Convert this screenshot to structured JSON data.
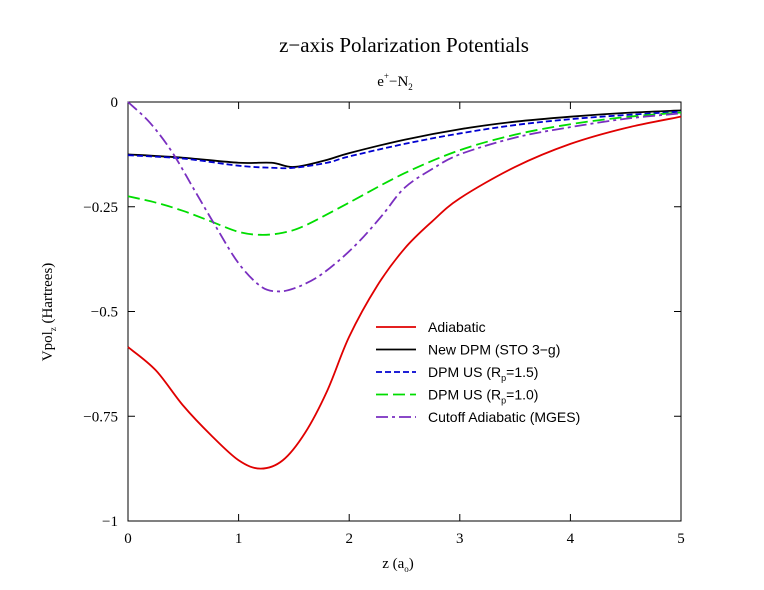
{
  "chart_data": {
    "type": "line",
    "title": "z−axis Polarization Potentials",
    "subtitle": {
      "base": "e",
      "sup": "+",
      "dash": "−",
      "base2": "N",
      "sub": "2"
    },
    "xlabel": {
      "base": "z (a",
      "sub": "o",
      "end": ")"
    },
    "ylabel": {
      "base": "Vpol",
      "sub": "z",
      "end": " (Hartrees)"
    },
    "xlim": [
      0,
      5
    ],
    "ylim": [
      -1,
      0
    ],
    "xticks": [
      0,
      1,
      2,
      3,
      4,
      5
    ],
    "xtick_labels": [
      "0",
      "1",
      "2",
      "3",
      "4",
      "5"
    ],
    "yticks": [
      0,
      -0.25,
      -0.5,
      -0.75,
      -1
    ],
    "ytick_labels": [
      "0",
      "−0.25",
      "−0.5",
      "−0.75",
      "−1"
    ],
    "grid": false,
    "legend_position": "right-middle",
    "series": [
      {
        "name": "Adiabatic",
        "color": "#e00000",
        "dash": "solid",
        "x": [
          0,
          0.25,
          0.5,
          0.75,
          1.0,
          1.2,
          1.4,
          1.6,
          1.8,
          2.0,
          2.25,
          2.5,
          2.75,
          3.0,
          3.5,
          4.0,
          4.5,
          5.0
        ],
        "y": [
          -0.585,
          -0.64,
          -0.725,
          -0.795,
          -0.855,
          -0.875,
          -0.855,
          -0.79,
          -0.69,
          -0.56,
          -0.44,
          -0.35,
          -0.285,
          -0.23,
          -0.155,
          -0.1,
          -0.062,
          -0.035
        ]
      },
      {
        "name": "New DPM (STO 3−g)",
        "color": "#000000",
        "dash": "solid",
        "x": [
          0,
          0.5,
          1.0,
          1.3,
          1.5,
          1.8,
          2.0,
          2.5,
          3.0,
          3.5,
          4.0,
          4.5,
          5.0
        ],
        "y": [
          -0.125,
          -0.133,
          -0.145,
          -0.145,
          -0.155,
          -0.138,
          -0.122,
          -0.09,
          -0.065,
          -0.047,
          -0.035,
          -0.026,
          -0.02
        ]
      },
      {
        "name": "DPM  US (R_p=1.5)",
        "label": {
          "base": "DPM  US (R",
          "sub": "p",
          "end": "=1.5)"
        },
        "color": "#0000d0",
        "dash": "6,3",
        "x": [
          0,
          0.5,
          1.0,
          1.3,
          1.5,
          1.8,
          2.0,
          2.5,
          3.0,
          3.5,
          4.0,
          4.5,
          5.0
        ],
        "y": [
          -0.127,
          -0.135,
          -0.152,
          -0.157,
          -0.157,
          -0.145,
          -0.13,
          -0.1,
          -0.075,
          -0.055,
          -0.041,
          -0.031,
          -0.023
        ]
      },
      {
        "name": "DPM US (R_p=1.0)",
        "label": {
          "base": "DPM US (R",
          "sub": "p",
          "end": "=1.0)"
        },
        "color": "#00dd00",
        "dash": "12,5",
        "x": [
          0,
          0.25,
          0.5,
          0.75,
          1.0,
          1.2,
          1.4,
          1.6,
          2.0,
          2.5,
          3.0,
          3.5,
          4.0,
          4.5,
          5.0
        ],
        "y": [
          -0.225,
          -0.24,
          -0.26,
          -0.285,
          -0.31,
          -0.317,
          -0.312,
          -0.295,
          -0.24,
          -0.17,
          -0.115,
          -0.078,
          -0.053,
          -0.036,
          -0.025
        ]
      },
      {
        "name": "Cutoff Adiabatic (MGES)",
        "color": "#7a2fc0",
        "dash": "12,4,3,4",
        "x": [
          0,
          0.2,
          0.4,
          0.6,
          0.8,
          1.0,
          1.2,
          1.35,
          1.5,
          1.7,
          1.9,
          2.1,
          2.3,
          2.5,
          2.75,
          3.0,
          3.5,
          4.0,
          4.5,
          5.0
        ],
        "y": [
          0,
          -0.05,
          -0.12,
          -0.21,
          -0.3,
          -0.385,
          -0.44,
          -0.452,
          -0.445,
          -0.42,
          -0.38,
          -0.33,
          -0.27,
          -0.205,
          -0.16,
          -0.125,
          -0.085,
          -0.06,
          -0.04,
          -0.027
        ]
      }
    ]
  }
}
